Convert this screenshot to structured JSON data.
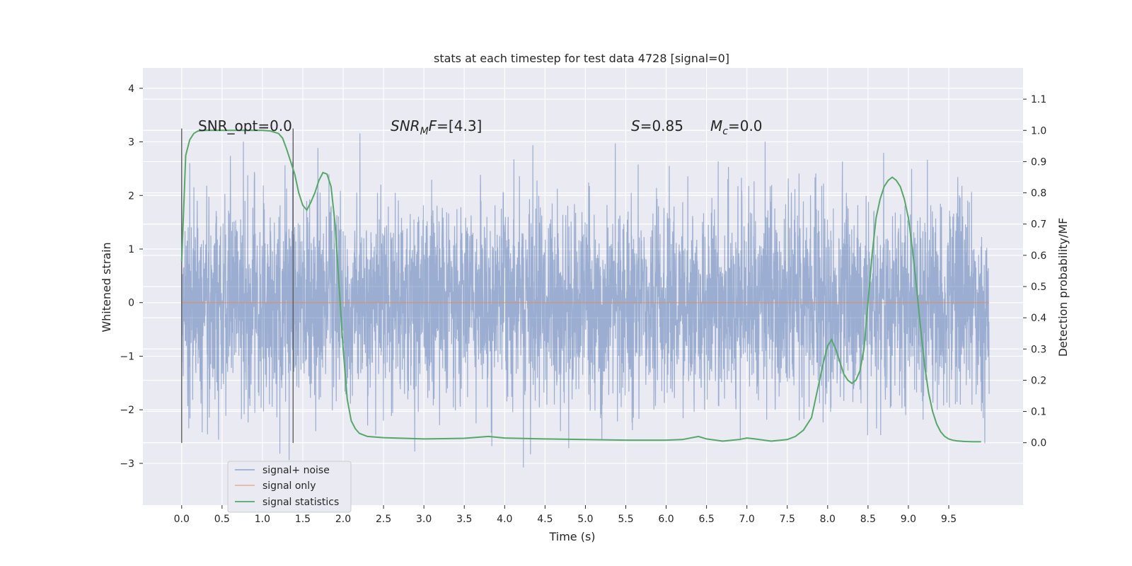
{
  "chart_data": {
    "type": "line",
    "title": "stats at each timestep for test data 4728 [signal=0]",
    "xlabel": "Time (s)",
    "ylabel": "Whitened strain",
    "ylabel_right": "Detection probability/MF",
    "xlim": [
      -0.48,
      10.42
    ],
    "ylim": [
      -3.78,
      4.38
    ],
    "ylim_right": [
      -0.2,
      1.2
    ],
    "x_ticks": [
      "0.0",
      "0.5",
      "1.0",
      "1.5",
      "2.0",
      "2.5",
      "3.0",
      "3.5",
      "4.0",
      "4.5",
      "5.0",
      "5.5",
      "6.0",
      "6.5",
      "7.0",
      "7.5",
      "8.0",
      "8.5",
      "9.0",
      "9.5"
    ],
    "y_ticks": [
      "4",
      "3",
      "2",
      "1",
      "0",
      "−1",
      "−2",
      "−3"
    ],
    "y_right_ticks": [
      "1.1",
      "1.0",
      "0.9",
      "0.8",
      "0.7",
      "0.6",
      "0.5",
      "0.4",
      "0.3",
      "0.2",
      "0.1",
      "0.0"
    ],
    "grid": true,
    "legend_position": "lower-left",
    "annotations": {
      "snr_opt": "SNR_opt=0.0",
      "snr_mf_sym": "SNR",
      "snr_mf_sub": "M",
      "snr_mf_sym2": "F",
      "snr_mf_val": "=[4.3]",
      "s_sym": "S",
      "s_val": "=0.85",
      "mc_sym": "M",
      "mc_sub": "c",
      "mc_val": "=0.0"
    },
    "vlines_x": [
      0.0,
      1.38
    ],
    "series": [
      {
        "name": "signal+ noise",
        "color": "#4c72b0",
        "axis": "left",
        "x_range": [
          0.0,
          10.0
        ],
        "note": "whitened noise, sample points 4096 per 10s"
      },
      {
        "name": "signal only",
        "color": "#dd8452",
        "axis": "left",
        "x": [
          0.0,
          10.0
        ],
        "y": [
          0.0,
          0.0
        ]
      },
      {
        "name": "signal statistics",
        "color": "#55a868",
        "axis": "right",
        "x": [
          0.0,
          0.05,
          0.1,
          0.15,
          0.2,
          0.3,
          0.5,
          0.8,
          1.0,
          1.1,
          1.2,
          1.25,
          1.3,
          1.35,
          1.4,
          1.45,
          1.5,
          1.55,
          1.6,
          1.65,
          1.7,
          1.75,
          1.8,
          1.85,
          1.9,
          1.95,
          2.0,
          2.05,
          2.1,
          2.15,
          2.2,
          2.3,
          2.5,
          3.0,
          3.5,
          3.8,
          4.0,
          4.5,
          5.0,
          5.5,
          6.0,
          6.2,
          6.4,
          6.5,
          6.7,
          6.9,
          7.0,
          7.1,
          7.3,
          7.5,
          7.6,
          7.7,
          7.8,
          7.85,
          7.9,
          7.95,
          8.0,
          8.05,
          8.1,
          8.15,
          8.2,
          8.25,
          8.3,
          8.35,
          8.4,
          8.45,
          8.5,
          8.55,
          8.6,
          8.65,
          8.7,
          8.75,
          8.8,
          8.85,
          8.9,
          8.95,
          9.0,
          9.05,
          9.1,
          9.15,
          9.2,
          9.25,
          9.3,
          9.35,
          9.4,
          9.45,
          9.5,
          9.55,
          9.6,
          9.7,
          9.8,
          9.9
        ],
        "y": [
          0.58,
          0.92,
          0.97,
          0.99,
          0.998,
          1.0,
          1.0,
          1.0,
          1.0,
          0.998,
          0.99,
          0.975,
          0.94,
          0.9,
          0.86,
          0.8,
          0.76,
          0.745,
          0.77,
          0.8,
          0.84,
          0.865,
          0.86,
          0.82,
          0.7,
          0.5,
          0.3,
          0.14,
          0.07,
          0.045,
          0.03,
          0.02,
          0.016,
          0.012,
          0.014,
          0.02,
          0.015,
          0.012,
          0.01,
          0.008,
          0.008,
          0.01,
          0.02,
          0.012,
          0.005,
          0.01,
          0.015,
          0.012,
          0.005,
          0.01,
          0.02,
          0.04,
          0.08,
          0.14,
          0.2,
          0.26,
          0.31,
          0.33,
          0.3,
          0.26,
          0.22,
          0.2,
          0.19,
          0.2,
          0.23,
          0.3,
          0.45,
          0.6,
          0.72,
          0.78,
          0.82,
          0.84,
          0.85,
          0.84,
          0.82,
          0.78,
          0.72,
          0.62,
          0.5,
          0.37,
          0.25,
          0.16,
          0.1,
          0.06,
          0.035,
          0.02,
          0.012,
          0.008,
          0.006,
          0.004,
          0.003,
          0.003
        ]
      }
    ]
  }
}
